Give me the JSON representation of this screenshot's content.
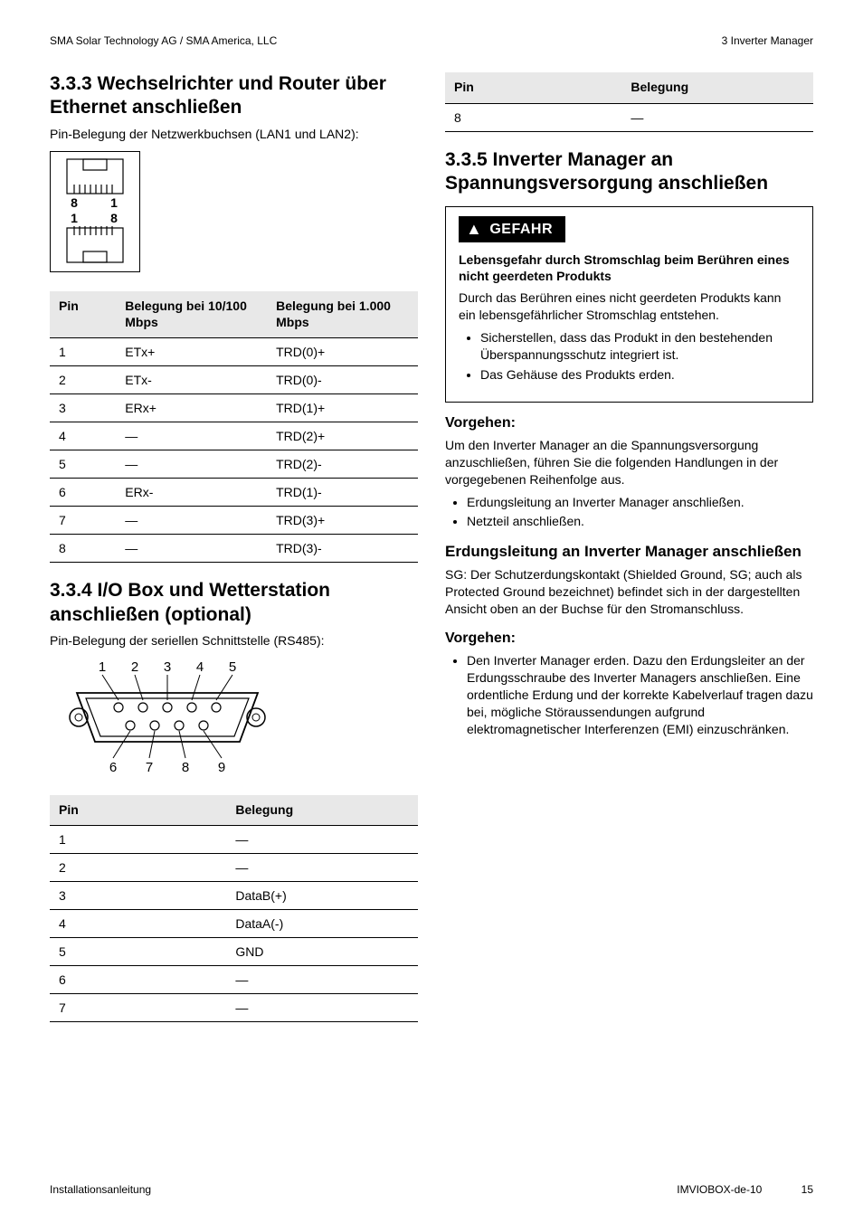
{
  "header": {
    "left": "SMA Solar Technology AG / SMA America, LLC",
    "right": "3   Inverter Manager"
  },
  "left_col": {
    "section_333_title": "3.3.3  Wechselrichter und Router über Ethernet anschließen",
    "section_333_caption": "Pin-Belegung der Netzwerkbuchsen (LAN1 und LAN2):",
    "rj45_labels": {
      "top_left": "8",
      "top_right": "1",
      "bottom_left": "1",
      "bottom_right": "8"
    },
    "ethernet_table": {
      "headers": [
        "Pin",
        "Belegung bei 10/100 Mbps",
        "Belegung bei 1.000 Mbps"
      ],
      "rows": [
        [
          "1",
          "ETx+",
          "TRD(0)+"
        ],
        [
          "2",
          "ETx-",
          "TRD(0)-"
        ],
        [
          "3",
          "ERx+",
          "TRD(1)+"
        ],
        [
          "4",
          "—",
          "TRD(2)+"
        ],
        [
          "5",
          "—",
          "TRD(2)-"
        ],
        [
          "6",
          "ERx-",
          "TRD(1)-"
        ],
        [
          "7",
          "—",
          "TRD(3)+"
        ],
        [
          "8",
          "—",
          "TRD(3)-"
        ]
      ],
      "col_widths": [
        "18%",
        "41%",
        "41%"
      ]
    },
    "section_334_title": "3.3.4  I/O Box und Wetterstation anschließen (optional)",
    "section_334_caption": "Pin-Belegung der seriellen Schnittstelle (RS485):",
    "rs485_labels_top": [
      "1",
      "2",
      "3",
      "4",
      "5"
    ],
    "rs485_labels_bottom": [
      "6",
      "7",
      "8",
      "9"
    ],
    "rs485_table": {
      "headers": [
        "Pin",
        "Belegung"
      ],
      "rows": [
        [
          "1",
          "—"
        ],
        [
          "2",
          "—"
        ],
        [
          "3",
          "DataB(+)"
        ],
        [
          "4",
          "DataA(-)"
        ],
        [
          "5",
          "GND"
        ],
        [
          "6",
          "—"
        ],
        [
          "7",
          "—"
        ]
      ],
      "col_widths": [
        "48%",
        "52%"
      ]
    }
  },
  "right_col": {
    "top_table": {
      "headers": [
        "Pin",
        "Belegung"
      ],
      "rows": [
        [
          "8",
          "—"
        ]
      ],
      "col_widths": [
        "48%",
        "52%"
      ]
    },
    "section_335_title": "3.3.5  Inverter Manager an Spannungsversorgung anschließen",
    "danger": {
      "label": "GEFAHR",
      "title": "Lebensgefahr durch Stromschlag beim Berühren eines nicht geerdeten Produkts",
      "body": "Durch das Berühren eines nicht geerdeten Produkts kann ein lebensgefährlicher Stromschlag entstehen.",
      "bullets": [
        "Sicherstellen, dass das Produkt in den bestehenden Überspannungsschutz integriert ist.",
        "Das Gehäuse des Produkts erden."
      ]
    },
    "vorgehen1": {
      "heading": "Vorgehen:",
      "body": "Um den Inverter Manager an die Spannungsversorgung anzuschließen, führen Sie die folgenden Handlungen in der vorgegebenen Reihenfolge aus.",
      "bullets": [
        "Erdungsleitung an Inverter Manager anschließen.",
        "Netzteil anschließen."
      ]
    },
    "sub_heading": "Erdungsleitung an Inverter Manager anschließen",
    "sub_body": "SG: Der Schutzerdungskontakt (Shielded Ground, SG; auch als Protected Ground bezeichnet) befindet sich in der dargestellten Ansicht oben an der Buchse für den Stromanschluss.",
    "vorgehen2": {
      "heading": "Vorgehen:",
      "bullets": [
        "Den Inverter Manager erden. Dazu den Erdungsleiter an der Erdungsschraube des Inverter Managers anschließen. Eine ordentliche Erdung und der korrekte Kabelverlauf tragen dazu bei, mögliche Störaussendungen aufgrund elektromagnetischer Interferenzen (EMI) einzuschränken."
      ]
    }
  },
  "footer": {
    "left": "Installationsanleitung",
    "right_code": "IMVIOBOX-de-10",
    "page": "15"
  },
  "colors": {
    "header_bg": "#e8e8e8",
    "border": "#000000",
    "text": "#000000",
    "bg": "#ffffff"
  }
}
